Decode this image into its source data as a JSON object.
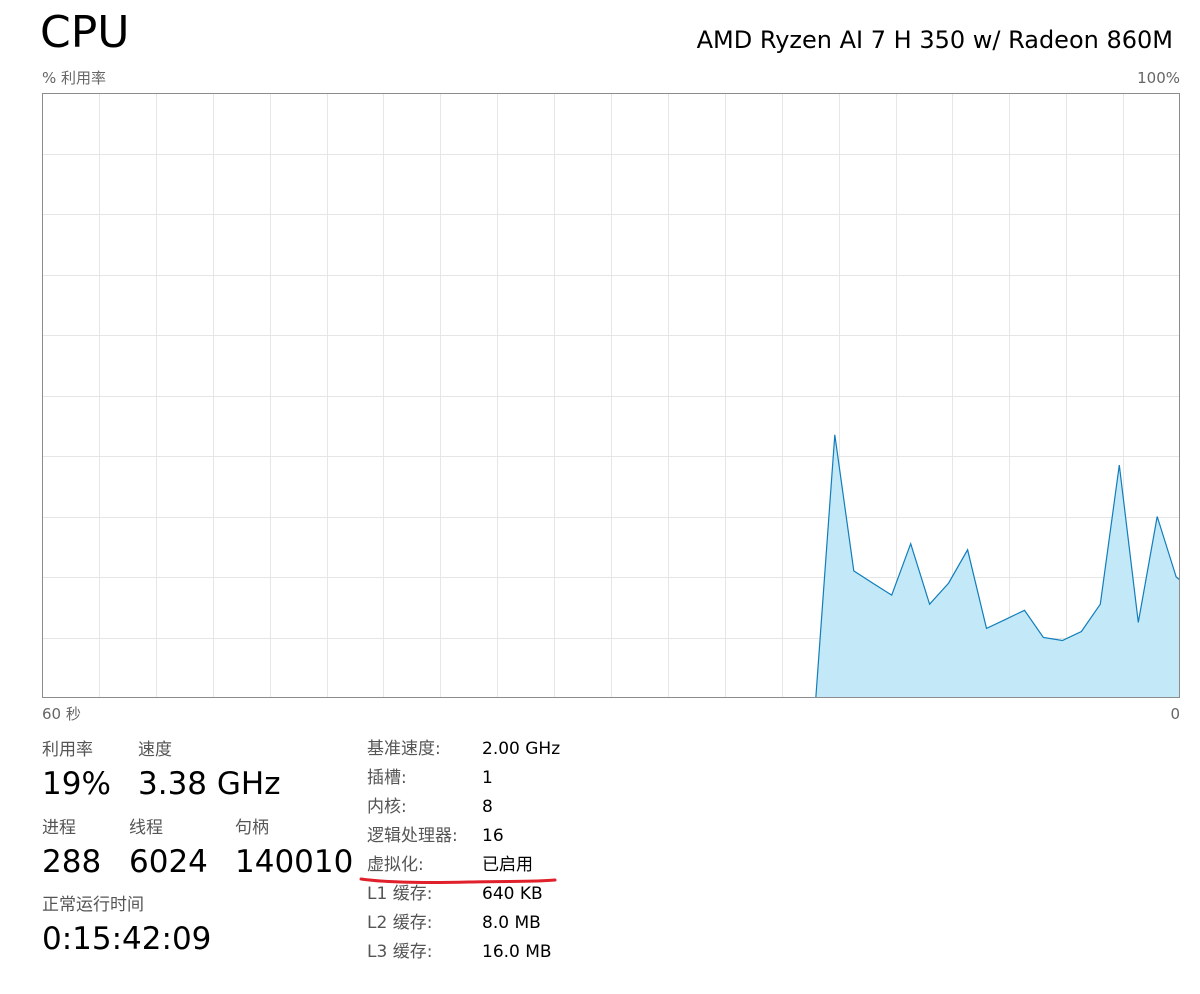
{
  "header": {
    "title": "CPU",
    "model": "AMD Ryzen AI 7 H 350 w/ Radeon 860M"
  },
  "chart_labels": {
    "ylabel": "% 利用率",
    "ymax_label": "100%",
    "xmin_label": "60 秒",
    "xmax_label": "0"
  },
  "chart_data": {
    "type": "area",
    "xlabel": "",
    "ylabel": "% 利用率",
    "xlim": [
      60,
      0
    ],
    "ylim": [
      0,
      100
    ],
    "grid": true,
    "color": "#117dbb",
    "fill": "#c3e9f8",
    "x": [
      19.2,
      18.2,
      17.2,
      16.2,
      15.2,
      14.2,
      13.2,
      12.2,
      11.2,
      10.2,
      9.2,
      8.2,
      7.2,
      6.2,
      5.2,
      4.2,
      3.2,
      2.2,
      1.2,
      0.2,
      0
    ],
    "values": [
      0,
      43.5,
      21,
      19,
      17,
      25.5,
      15.5,
      19,
      24.5,
      11.5,
      13,
      14.5,
      10,
      9.5,
      11,
      15.5,
      38.5,
      12.5,
      30,
      20,
      19.5
    ]
  },
  "stats": {
    "utilization_label": "利用率",
    "utilization_value": "19%",
    "speed_label": "速度",
    "speed_value": "3.38 GHz",
    "processes_label": "进程",
    "processes_value": "288",
    "threads_label": "线程",
    "threads_value": "6024",
    "handles_label": "句柄",
    "handles_value": "140010",
    "uptime_label": "正常运行时间",
    "uptime_value": "0:15:42:09"
  },
  "specs": [
    {
      "key": "基准速度:",
      "value": "2.00 GHz"
    },
    {
      "key": "插槽:",
      "value": "1"
    },
    {
      "key": "内核:",
      "value": "8"
    },
    {
      "key": "逻辑处理器:",
      "value": "16"
    },
    {
      "key": "虚拟化:",
      "value": "已启用"
    },
    {
      "key": "L1 缓存:",
      "value": "640 KB"
    },
    {
      "key": "L2 缓存:",
      "value": "8.0 MB"
    },
    {
      "key": "L3 缓存:",
      "value": "16.0 MB"
    }
  ],
  "annotation": {
    "underline_color": "#e0202a"
  }
}
